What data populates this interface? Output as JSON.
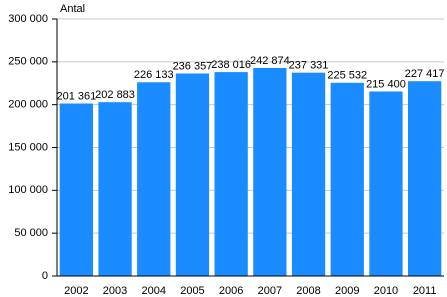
{
  "chart_data": {
    "type": "bar",
    "y_label": "Antal",
    "categories": [
      "2002",
      "2003",
      "2004",
      "2005",
      "2006",
      "2007",
      "2008",
      "2009",
      "2010",
      "2011"
    ],
    "values": [
      201361,
      202883,
      226133,
      236357,
      238016,
      242874,
      237331,
      225532,
      215400,
      227417
    ],
    "value_labels": [
      "201 361",
      "202 883",
      "226 133",
      "236 357",
      "238 016",
      "242 874",
      "237 331",
      "225 532",
      "215 400",
      "227 417"
    ],
    "color": "#1a8cff",
    "ylim": [
      0,
      300000
    ],
    "yticks": [
      0,
      {
        "value": 50000,
        "label": "50 000"
      },
      {
        "value": 100000,
        "label": "100 000"
      },
      {
        "value": 150000,
        "label": "150 000"
      },
      {
        "value": 200000,
        "label": "200 000"
      },
      {
        "value": 250000,
        "label": "250 000"
      },
      {
        "value": 300000,
        "label": "300 000"
      }
    ],
    "grid": true
  }
}
